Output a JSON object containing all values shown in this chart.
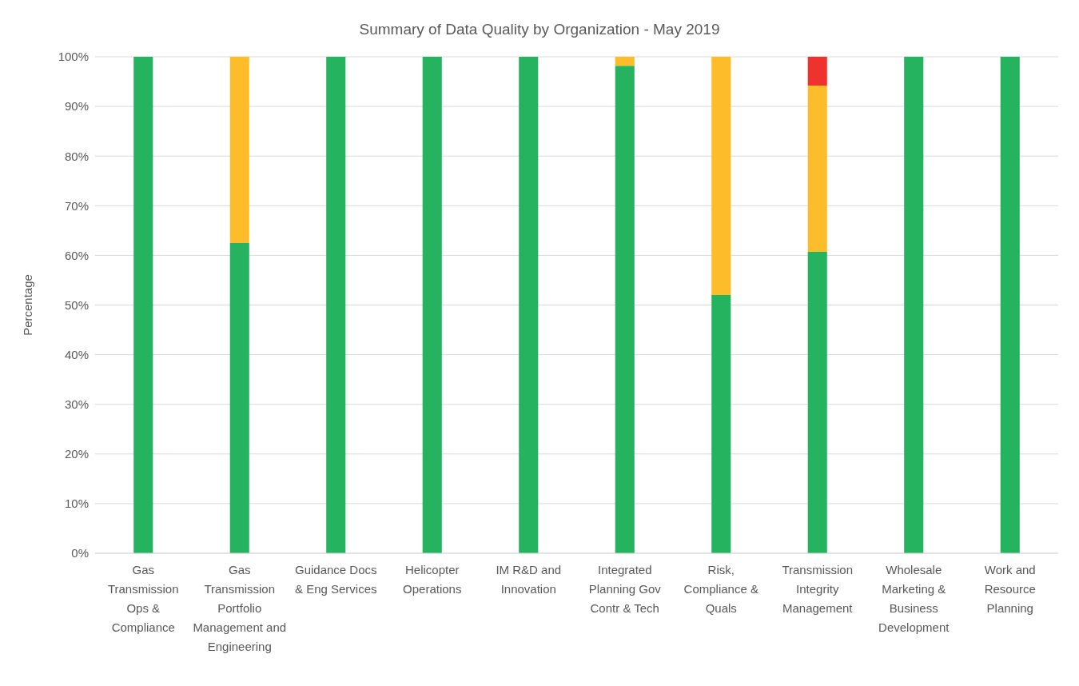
{
  "chart_data": {
    "type": "bar",
    "title": "Summary of Data Quality by Organization - May 2019",
    "ylabel": "Percentage",
    "stacked": true,
    "grid": "y",
    "legend": false,
    "categories": [
      "Gas Transmission Ops & Compliance",
      "Gas Transmission Portfolio Management and Engineering",
      "Guidance Docs & Eng Services",
      "Helicopter Operations",
      "IM R&D and Innovation",
      "Integrated Planning Gov Contr & Tech",
      "Risk, Compliance & Quals",
      "Transmission Integrity Management",
      "Wholesale Marketing & Business Development",
      "Work and Resource Planning"
    ],
    "series": [
      {
        "color": "#25b360",
        "values": [
          100,
          62.5,
          100,
          100,
          100,
          98.2,
          52.0,
          60.7,
          100,
          100
        ]
      },
      {
        "color": "#fdbd2a",
        "values": [
          null,
          37.5,
          null,
          null,
          null,
          1.8,
          48.0,
          33.5,
          null,
          null
        ]
      },
      {
        "color": "#ee332e",
        "values": [
          null,
          null,
          null,
          null,
          null,
          null,
          null,
          5.8,
          null,
          null
        ]
      }
    ],
    "ylim": [
      0,
      100
    ],
    "yticks": [
      {
        "value": 0,
        "label": "0%"
      },
      {
        "value": 10,
        "label": "10%"
      },
      {
        "value": 20,
        "label": "20%"
      },
      {
        "value": 30,
        "label": "30%"
      },
      {
        "value": 40,
        "label": "40%"
      },
      {
        "value": 50,
        "label": "50%"
      },
      {
        "value": 60,
        "label": "60%"
      },
      {
        "value": 70,
        "label": "70%"
      },
      {
        "value": 80,
        "label": "80%"
      },
      {
        "value": 90,
        "label": "90%"
      },
      {
        "value": 100,
        "label": "100%"
      }
    ]
  }
}
